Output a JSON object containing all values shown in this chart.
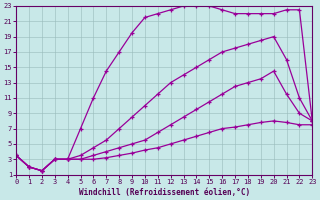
{
  "xlabel": "Windchill (Refroidissement éolien,°C)",
  "ylabel": "",
  "bg_color": "#c8e8e8",
  "line_color": "#990099",
  "xlim": [
    0,
    23
  ],
  "ylim": [
    1,
    23
  ],
  "xticks": [
    0,
    1,
    2,
    3,
    4,
    5,
    6,
    7,
    8,
    9,
    10,
    11,
    12,
    13,
    14,
    15,
    16,
    17,
    18,
    19,
    20,
    21,
    22,
    23
  ],
  "yticks": [
    1,
    3,
    5,
    7,
    9,
    11,
    13,
    15,
    17,
    19,
    21,
    23
  ],
  "curve1_x": [
    0,
    1,
    2,
    3,
    4,
    5,
    6,
    7,
    8,
    9,
    10,
    11,
    12,
    13,
    14,
    15,
    16,
    17,
    18,
    19,
    20,
    21,
    22,
    23
  ],
  "curve1_y": [
    3.5,
    2.0,
    1.5,
    3.0,
    3.0,
    7.0,
    11.0,
    14.5,
    17.0,
    19.5,
    21.5,
    22.0,
    22.5,
    23.0,
    23.0,
    23.0,
    22.5,
    22.0,
    22.0,
    22.0,
    22.0,
    22.5,
    22.5,
    8.0
  ],
  "curve2_x": [
    0,
    1,
    2,
    3,
    4,
    5,
    6,
    7,
    8,
    9,
    10,
    11,
    12,
    13,
    14,
    15,
    16,
    17,
    18,
    19,
    20,
    21,
    22,
    23
  ],
  "curve2_y": [
    3.5,
    2.0,
    1.5,
    3.0,
    3.0,
    3.5,
    4.5,
    5.5,
    7.0,
    8.5,
    10.0,
    11.5,
    13.0,
    14.0,
    15.0,
    16.0,
    17.0,
    17.5,
    18.0,
    18.5,
    19.0,
    16.0,
    11.0,
    8.0
  ],
  "curve3_x": [
    0,
    1,
    2,
    3,
    4,
    5,
    6,
    7,
    8,
    9,
    10,
    11,
    12,
    13,
    14,
    15,
    16,
    17,
    18,
    19,
    20,
    21,
    22,
    23
  ],
  "curve3_y": [
    3.5,
    2.0,
    1.5,
    3.0,
    3.0,
    3.0,
    3.5,
    4.0,
    4.5,
    5.0,
    5.5,
    6.5,
    7.5,
    8.5,
    9.5,
    10.5,
    11.5,
    12.5,
    13.0,
    13.5,
    14.5,
    11.5,
    9.0,
    8.0
  ],
  "curve4_x": [
    0,
    1,
    2,
    3,
    4,
    5,
    6,
    7,
    8,
    9,
    10,
    11,
    12,
    13,
    14,
    15,
    16,
    17,
    18,
    19,
    20,
    21,
    22,
    23
  ],
  "curve4_y": [
    3.5,
    2.0,
    1.5,
    3.0,
    3.0,
    3.0,
    3.0,
    3.2,
    3.5,
    3.8,
    4.2,
    4.5,
    5.0,
    5.5,
    6.0,
    6.5,
    7.0,
    7.2,
    7.5,
    7.8,
    8.0,
    7.8,
    7.5,
    7.5
  ]
}
